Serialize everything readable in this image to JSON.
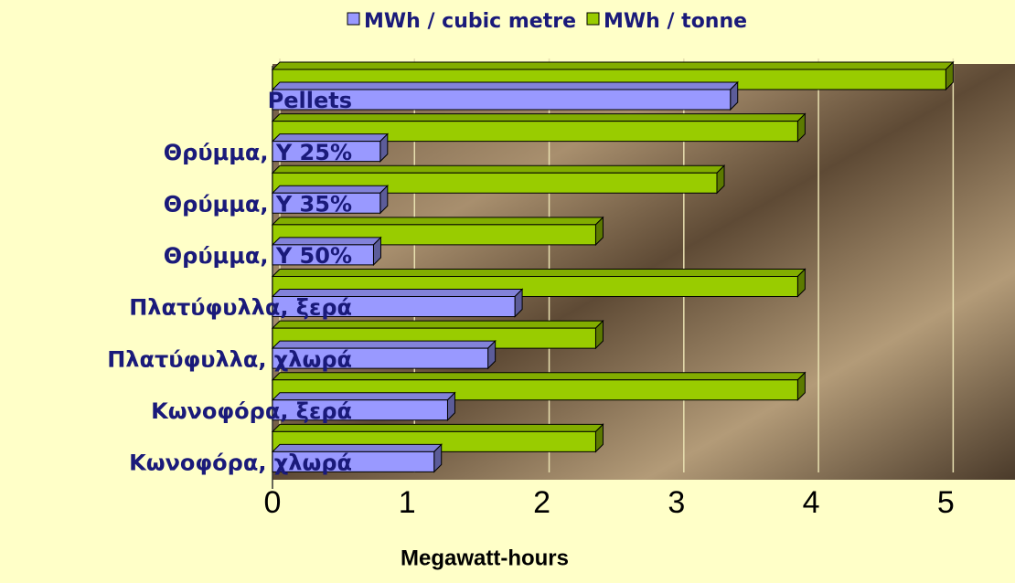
{
  "chart_data": {
    "type": "bar",
    "orientation": "horizontal",
    "categories": [
      "Pellets",
      "Θρύμμα, Υ 25%",
      "Θρύμμα, Υ 35%",
      "Θρύμμα, Υ 50%",
      "Πλατύφυλλα, ξερά",
      "Πλατύφυλλα, χλωρά",
      "Κωνοφόρα, ξερά",
      "Κωνοφόρα, χλωρά"
    ],
    "series": [
      {
        "name": "MWh / tonne",
        "color": "#99cc00",
        "values": [
          5.0,
          3.9,
          3.3,
          2.4,
          3.9,
          2.4,
          3.9,
          2.4
        ]
      },
      {
        "name": "MWh / cubic metre",
        "color": "#9999ff",
        "values": [
          3.4,
          0.8,
          0.8,
          0.75,
          1.8,
          1.6,
          1.3,
          1.2
        ]
      }
    ],
    "xlabel": "Megawatt-hours",
    "xlim": [
      0,
      5.5
    ],
    "xticks": [
      0,
      1,
      2,
      3,
      4,
      5
    ],
    "grid": true,
    "legend": "top"
  }
}
